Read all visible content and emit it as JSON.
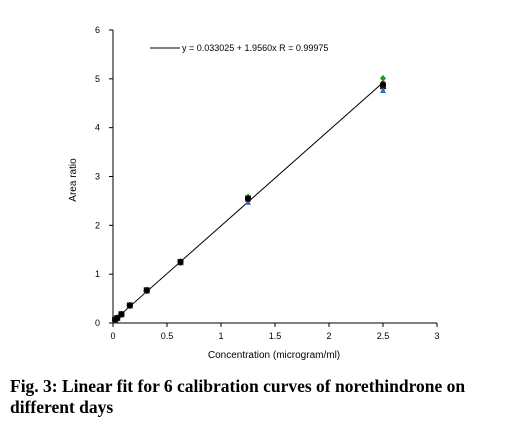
{
  "chart_data": {
    "type": "scatter",
    "title": "",
    "xlabel": "Concentration (microgram/ml)",
    "ylabel": "Area ratio",
    "xlim": [
      0,
      3
    ],
    "ylim": [
      0,
      6
    ],
    "x_ticks": [
      "0",
      "0.5",
      "1",
      "1.5",
      "2",
      "2.5",
      "3"
    ],
    "y_ticks": [
      "0",
      "1",
      "2",
      "3",
      "4",
      "5",
      "6"
    ],
    "grid": false,
    "legend_placement": "top-left",
    "fit_line": {
      "label": "y = 0.033025 + 1.9560x   R = 0.99975",
      "intercept": 0.033025,
      "slope": 1.956,
      "x_range": [
        0.0195,
        2.5
      ]
    },
    "series": [
      {
        "marker": "square",
        "color": "#1a1a1a",
        "x": [
          0.0195,
          0.039,
          0.078,
          0.156,
          0.3125,
          0.625,
          1.25,
          2.5
        ],
        "y": [
          0.07,
          0.1,
          0.18,
          0.36,
          0.67,
          1.25,
          2.55,
          4.85
        ]
      },
      {
        "marker": "triangle",
        "color": "#2a6fd6",
        "x": [
          0.0195,
          0.039,
          0.078,
          0.156,
          0.3125,
          0.625,
          1.25,
          2.5
        ],
        "y": [
          0.06,
          0.1,
          0.17,
          0.35,
          0.65,
          1.23,
          2.47,
          4.76
        ]
      },
      {
        "marker": "diamond",
        "color": "#1d9a2d",
        "x": [
          0.0195,
          0.039,
          0.078,
          0.156,
          0.3125,
          0.625,
          1.25,
          2.5
        ],
        "y": [
          0.07,
          0.11,
          0.18,
          0.36,
          0.67,
          1.26,
          2.58,
          5.01
        ]
      },
      {
        "marker": "circle",
        "color": "#d4222a",
        "x": [
          0.0195,
          0.039,
          0.078,
          0.156,
          0.3125,
          0.625,
          1.25,
          2.5
        ],
        "y": [
          0.07,
          0.1,
          0.18,
          0.36,
          0.66,
          1.24,
          2.53,
          4.9
        ]
      },
      {
        "marker": "circle",
        "color": "#8b2a10",
        "x": [
          0.0195,
          0.039,
          0.078,
          0.156,
          0.3125,
          0.625,
          1.25,
          2.5
        ],
        "y": [
          0.06,
          0.1,
          0.17,
          0.35,
          0.66,
          1.24,
          2.54,
          4.86
        ]
      },
      {
        "marker": "circle",
        "color": "#000000",
        "x": [
          0.0195,
          0.039,
          0.078,
          0.156,
          0.3125,
          0.625,
          1.25,
          2.5
        ],
        "y": [
          0.07,
          0.1,
          0.18,
          0.36,
          0.67,
          1.25,
          2.55,
          4.88
        ]
      }
    ]
  },
  "caption": "Fig. 3: Linear fit for 6 calibration curves of norethindrone on different days"
}
